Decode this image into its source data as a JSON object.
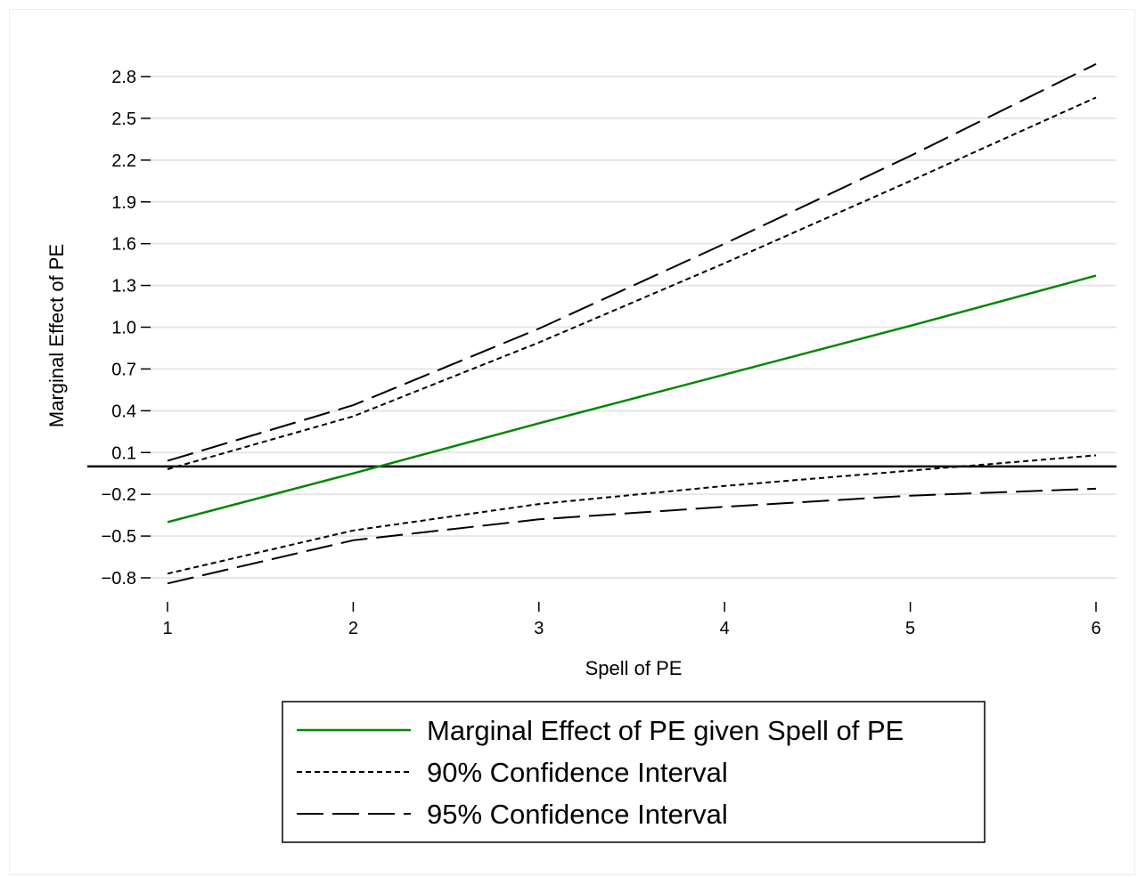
{
  "chart_data": {
    "type": "line",
    "xlabel": "Spell of PE",
    "ylabel": "Marginal Effect of PE",
    "xlim": [
      1,
      6
    ],
    "ylim": [
      -0.8,
      2.8
    ],
    "x_ticks": [
      1,
      2,
      3,
      4,
      5,
      6
    ],
    "y_ticks": [
      -0.8,
      -0.5,
      -0.2,
      0.1,
      0.4,
      0.7,
      1.0,
      1.3,
      1.6,
      1.9,
      2.2,
      2.5,
      2.8
    ],
    "y_tick_labels": [
      "−0.8",
      "−0.5",
      "−0.2",
      "0.1",
      "0.4",
      "0.7",
      "1.0",
      "1.3",
      "1.6",
      "1.9",
      "2.2",
      "2.5",
      "2.8"
    ],
    "grid": "horizontal",
    "reference_line_y": 0,
    "legend_position": "bottom",
    "x": [
      1,
      2,
      3,
      4,
      5,
      6
    ],
    "series": [
      {
        "name": "Marginal Effect of PE given Spell of PE",
        "values": [
          -0.4,
          -0.05,
          0.31,
          0.66,
          1.01,
          1.37
        ],
        "color": "#008800",
        "style": "solid"
      },
      {
        "name": "90% Confidence Interval",
        "color": "#000000",
        "style": "dotted",
        "upper": [
          -0.02,
          0.36,
          0.89,
          1.46,
          2.05,
          2.65
        ],
        "lower": [
          -0.77,
          -0.46,
          -0.27,
          -0.14,
          -0.03,
          0.08
        ]
      },
      {
        "name": "95% Confidence Interval",
        "color": "#000000",
        "style": "dashed",
        "upper": [
          0.04,
          0.44,
          0.99,
          1.6,
          2.23,
          2.89
        ],
        "lower": [
          -0.84,
          -0.53,
          -0.38,
          -0.29,
          -0.21,
          -0.16
        ]
      }
    ]
  }
}
